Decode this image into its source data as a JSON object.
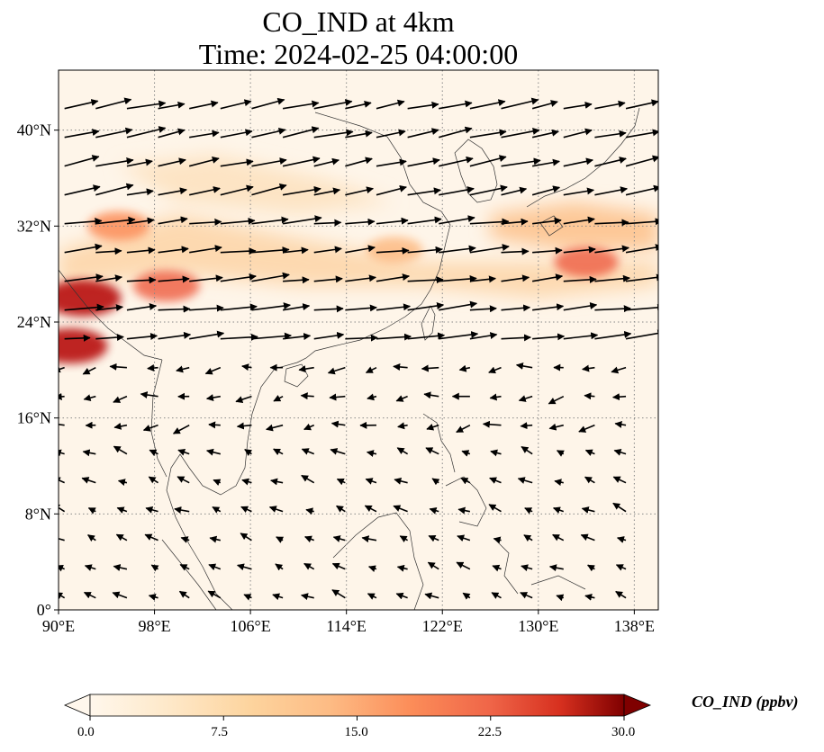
{
  "title": {
    "line1": "CO_IND at 4km",
    "line2": "Time: 2024-02-25 04:00:00"
  },
  "axes": {
    "lon_ticks": [
      "90°E",
      "98°E",
      "106°E",
      "114°E",
      "122°E",
      "130°E",
      "138°E"
    ],
    "lat_ticks": [
      "0°",
      "8°N",
      "16°N",
      "24°N",
      "32°N",
      "40°N"
    ],
    "lon_range": [
      90,
      140
    ],
    "lat_range": [
      0,
      45
    ],
    "grid": "dotted"
  },
  "colorbar": {
    "label": "CO_IND (ppbv)",
    "ticks": [
      "0.0",
      "7.5",
      "15.0",
      "22.5",
      "30.0"
    ],
    "range": [
      0,
      30
    ],
    "colormap": "OrRd",
    "extend": "both"
  },
  "map": {
    "field": "CO_IND",
    "units": "ppbv",
    "high_regions": [
      {
        "lon": 92,
        "lat": 26,
        "value": 28
      },
      {
        "lon": 91,
        "lat": 22,
        "value": 25
      },
      {
        "lon": 99,
        "lat": 27,
        "value": 18
      },
      {
        "lon": 95,
        "lat": 32,
        "value": 14
      },
      {
        "lon": 134,
        "lat": 29,
        "value": 16
      },
      {
        "lon": 118,
        "lat": 30,
        "value": 9
      }
    ],
    "wind_regime": "westerly north of ~22°N, northeasterly to the south"
  },
  "colors": {
    "arrow": "#000000",
    "coast": "#333333",
    "grid": "#888888"
  }
}
